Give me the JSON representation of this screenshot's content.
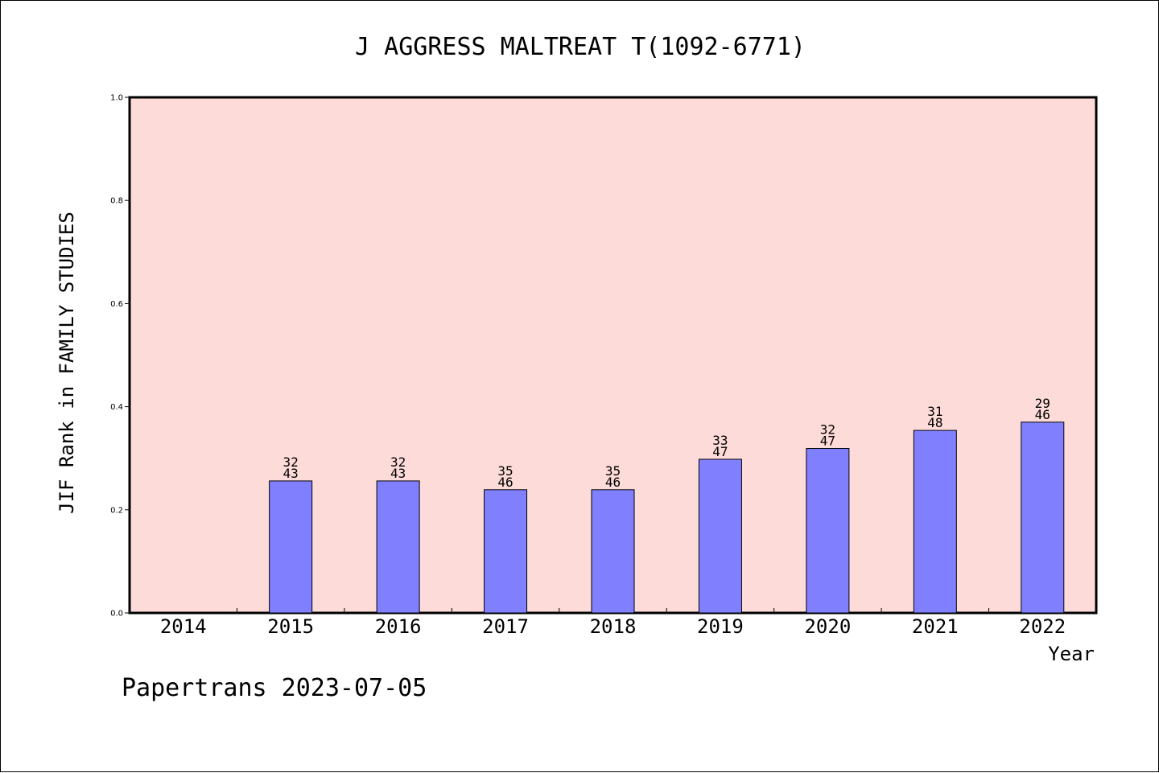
{
  "footer_text": "Papertrans 2023-07-05",
  "colors": {
    "plot_background": "#fddbd8",
    "bar_fill": "#8080ff",
    "bar_stroke": "#000000"
  },
  "chart_data": {
    "type": "bar",
    "title": "J AGGRESS MALTREAT T(1092-6771)",
    "xlabel": "Year",
    "ylabel": "JIF Rank in FAMILY STUDIES",
    "ylim": [
      0,
      1.0
    ],
    "yticks": [
      "0.0",
      "0.2",
      "0.4",
      "0.6",
      "0.8",
      "1.0"
    ],
    "grid": false,
    "categories": [
      "2014",
      "2015",
      "2016",
      "2017",
      "2018",
      "2019",
      "2020",
      "2021",
      "2022"
    ],
    "values": [
      null,
      0.256,
      0.256,
      0.239,
      0.239,
      0.298,
      0.319,
      0.354,
      0.37
    ],
    "rank_labels": [
      null,
      {
        "rank": "32",
        "total": "43"
      },
      {
        "rank": "32",
        "total": "43"
      },
      {
        "rank": "35",
        "total": "46"
      },
      {
        "rank": "35",
        "total": "46"
      },
      {
        "rank": "33",
        "total": "47"
      },
      {
        "rank": "32",
        "total": "47"
      },
      {
        "rank": "31",
        "total": "48"
      },
      {
        "rank": "29",
        "total": "46"
      }
    ]
  }
}
